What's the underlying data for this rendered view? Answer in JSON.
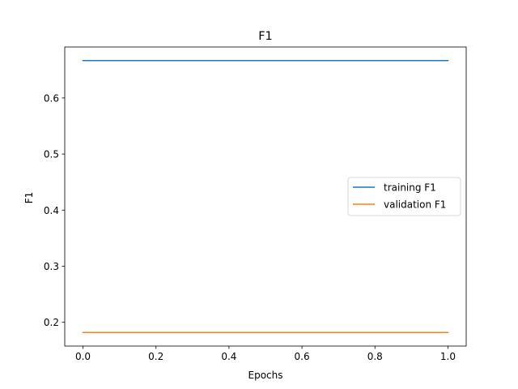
{
  "chart_data": {
    "type": "line",
    "title": "F1",
    "xlabel": "Epochs",
    "ylabel": "F1",
    "x": [
      0.0,
      1.0
    ],
    "series": [
      {
        "name": "training F1",
        "values": [
          0.6667,
          0.6667
        ],
        "color": "#1f77b4"
      },
      {
        "name": "validation F1",
        "values": [
          0.1818,
          0.1818
        ],
        "color": "#ff7f0e"
      }
    ],
    "xlim": [
      -0.05,
      1.05
    ],
    "ylim": [
      0.1576,
      0.6909
    ],
    "xticks": [
      {
        "value": 0.0,
        "label": "0.0"
      },
      {
        "value": 0.2,
        "label": "0.2"
      },
      {
        "value": 0.4,
        "label": "0.4"
      },
      {
        "value": 0.6,
        "label": "0.6"
      },
      {
        "value": 0.8,
        "label": "0.8"
      },
      {
        "value": 1.0,
        "label": "1.0"
      }
    ],
    "yticks": [
      {
        "value": 0.2,
        "label": "0.2"
      },
      {
        "value": 0.3,
        "label": "0.3"
      },
      {
        "value": 0.4,
        "label": "0.4"
      },
      {
        "value": 0.5,
        "label": "0.5"
      },
      {
        "value": 0.6,
        "label": "0.6"
      }
    ],
    "grid": false,
    "legend_position": "center-right"
  }
}
